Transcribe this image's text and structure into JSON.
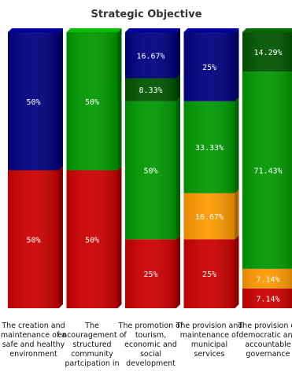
{
  "chart_data": {
    "type": "bar",
    "stacked": true,
    "percent_stacked": true,
    "title": "Strategic Objective",
    "xlabel": "",
    "ylabel": "",
    "ylim": [
      0,
      100
    ],
    "grid": false,
    "legend": "none",
    "categories": [
      [
        "The creation and",
        "maintenance of a",
        "safe and healthy",
        "environment"
      ],
      [
        "The",
        "encouragement of",
        "structured",
        "community",
        "partcipation in"
      ],
      [
        "The promotion of",
        "tourism,",
        "economic and",
        "social",
        "development"
      ],
      [
        "The provision and",
        "maintenance of",
        "municipal",
        "services"
      ],
      [
        "The provision of",
        "democratic and",
        "accountable",
        "governance"
      ]
    ],
    "series": [
      {
        "color": "#cc0000",
        "values": [
          50,
          50,
          25,
          25,
          7.14
        ],
        "labels": [
          "50%",
          "50%",
          "25%",
          "25%",
          "7.14%"
        ]
      },
      {
        "color": "#ff9900",
        "values": [
          0,
          0,
          0,
          16.67,
          7.14
        ],
        "labels": [
          "",
          "",
          "",
          "16.67%",
          "7.14%"
        ]
      },
      {
        "color": "#009900",
        "values": [
          0,
          50,
          50,
          33.33,
          71.43
        ],
        "labels": [
          "",
          "50%",
          "50%",
          "33.33%",
          "71.43%"
        ]
      },
      {
        "color": "#005500",
        "values": [
          0,
          0,
          8.33,
          0,
          14.29
        ],
        "labels": [
          "",
          "",
          "8.33%",
          "",
          "14.29%"
        ]
      },
      {
        "color": "#000080",
        "values": [
          50,
          0,
          16.67,
          25,
          0
        ],
        "labels": [
          "50%",
          "",
          "16.67%",
          "25%",
          ""
        ]
      }
    ]
  }
}
